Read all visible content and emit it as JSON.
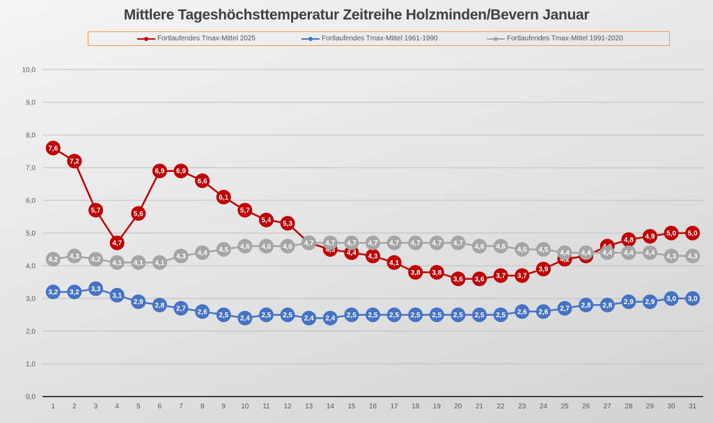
{
  "chart_data": {
    "type": "line",
    "title": "Mittlere Tageshöchsttemperatur Zeitreihe Holzminden/Bevern Januar",
    "xlabel": "",
    "ylabel": "",
    "ylim": [
      0,
      10
    ],
    "yticks": [
      "0,0",
      "1,0",
      "2,0",
      "3,0",
      "4,0",
      "5,0",
      "6,0",
      "7,0",
      "8,0",
      "9,0",
      "10,0"
    ],
    "grid": true,
    "legend_position": "top",
    "x": [
      1,
      2,
      3,
      4,
      5,
      6,
      7,
      8,
      9,
      10,
      11,
      12,
      13,
      14,
      15,
      16,
      17,
      18,
      19,
      20,
      21,
      22,
      23,
      24,
      25,
      26,
      27,
      28,
      29,
      30,
      31
    ],
    "series": [
      {
        "name": "Fortlaufendes Tmax-Mittel 2025",
        "color": "#c00000",
        "values": [
          7.6,
          7.2,
          5.7,
          4.7,
          5.6,
          6.9,
          6.9,
          6.6,
          6.1,
          5.7,
          5.4,
          5.3,
          4.7,
          4.5,
          4.4,
          4.3,
          4.1,
          3.8,
          3.8,
          3.6,
          3.6,
          3.7,
          3.7,
          3.9,
          4.2,
          4.3,
          4.6,
          4.8,
          4.9,
          5.0,
          5.0
        ]
      },
      {
        "name": "Fortlaufendes Tmax-Mittel 1961-1990",
        "color": "#4472c4",
        "values": [
          3.2,
          3.2,
          3.3,
          3.1,
          2.9,
          2.8,
          2.7,
          2.6,
          2.5,
          2.4,
          2.5,
          2.5,
          2.4,
          2.4,
          2.5,
          2.5,
          2.5,
          2.5,
          2.5,
          2.5,
          2.5,
          2.5,
          2.6,
          2.6,
          2.7,
          2.8,
          2.8,
          2.9,
          2.9,
          3.0,
          3.0
        ]
      },
      {
        "name": "Fortlaufendes Tmax-Mittel 1991-2020",
        "color": "#a5a5a5",
        "values": [
          4.2,
          4.3,
          4.2,
          4.1,
          4.1,
          4.1,
          4.3,
          4.4,
          4.5,
          4.6,
          4.6,
          4.6,
          4.7,
          4.7,
          4.7,
          4.7,
          4.7,
          4.7,
          4.7,
          4.7,
          4.6,
          4.6,
          4.5,
          4.5,
          4.4,
          4.4,
          4.4,
          4.4,
          4.4,
          4.3,
          4.3
        ]
      }
    ]
  }
}
